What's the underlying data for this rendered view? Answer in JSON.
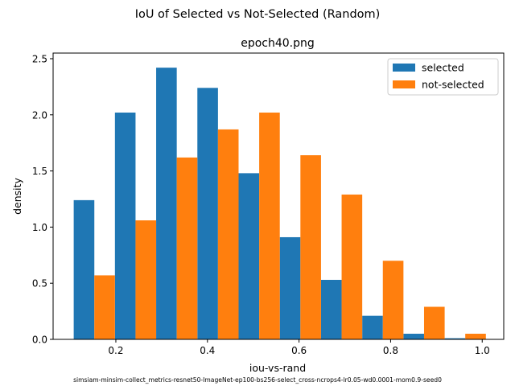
{
  "chart_data": {
    "type": "bar",
    "suptitle": "IoU of Selected vs Not-Selected (Random)",
    "title": "epoch40.png",
    "xlabel": "iou-vs-rand",
    "ylabel": "density",
    "footer": "simsiam-minsim-collect_metrics-resnet50-ImageNet-ep100-bs256-select_cross-ncrops4-lr0.05-wd0.0001-mom0.9-seed0",
    "xlim": [
      0.063,
      1.047
    ],
    "ylim": [
      0,
      2.55
    ],
    "x_ticks": [
      0.2,
      0.4,
      0.6,
      0.8,
      1.0
    ],
    "x_tick_labels": [
      "0.2",
      "0.4",
      "0.6",
      "0.8",
      "1.0"
    ],
    "y_ticks": [
      0.0,
      0.5,
      1.0,
      1.5,
      2.0,
      2.5
    ],
    "y_tick_labels": [
      "0.0",
      "0.5",
      "1.0",
      "1.5",
      "2.0",
      "2.5"
    ],
    "bin_edges": [
      0.108,
      0.198,
      0.288,
      0.378,
      0.468,
      0.558,
      0.648,
      0.738,
      0.828,
      0.918,
      1.008
    ],
    "grid": false,
    "legend_position": "top-right",
    "series": [
      {
        "name": "selected",
        "color": "#1f77b4",
        "values": [
          1.24,
          2.02,
          2.42,
          2.24,
          1.48,
          0.91,
          0.53,
          0.21,
          0.05,
          0.01
        ]
      },
      {
        "name": "not-selected",
        "color": "#ff7f0e",
        "values": [
          0.57,
          1.06,
          1.62,
          1.87,
          2.02,
          1.64,
          1.29,
          0.7,
          0.29,
          0.05
        ]
      }
    ]
  }
}
